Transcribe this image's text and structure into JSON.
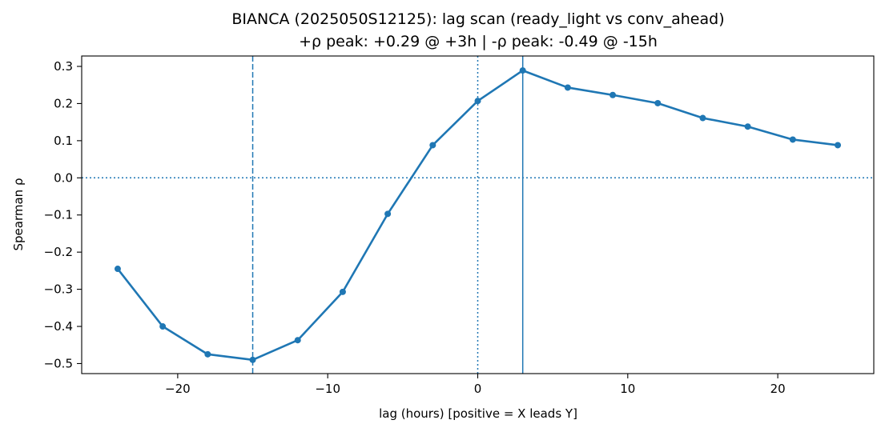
{
  "chart_data": {
    "type": "line",
    "title": "BIANCA (2025050S12125): lag scan (ready_light vs conv_ahead)",
    "subtitle": "+ρ peak: +0.29 @ +3h | -ρ peak: -0.49 @ -15h",
    "xlabel": "lag (hours) [positive = X leads Y]",
    "ylabel": "Spearman ρ",
    "xlim": [
      -26.4,
      26.4
    ],
    "ylim": [
      -0.527,
      0.328
    ],
    "x_ticks": [
      -20,
      -10,
      0,
      10,
      20
    ],
    "x_tick_labels": [
      "−20",
      "−10",
      "0",
      "10",
      "20"
    ],
    "y_ticks": [
      -0.5,
      -0.4,
      -0.3,
      -0.2,
      -0.1,
      0.0,
      0.1,
      0.2,
      0.3
    ],
    "y_tick_labels": [
      "−0.5",
      "−0.4",
      "−0.3",
      "−0.2",
      "−0.1",
      "0.0",
      "0.1",
      "0.2",
      "0.3"
    ],
    "grid": false,
    "color": "#1f77b4",
    "x": [
      -24,
      -21,
      -18,
      -15,
      -12,
      -9,
      -6,
      -3,
      0,
      3,
      6,
      9,
      12,
      15,
      18,
      21,
      24
    ],
    "y": [
      -0.245,
      -0.4,
      -0.475,
      -0.49,
      -0.437,
      -0.307,
      -0.097,
      0.088,
      0.207,
      0.289,
      0.243,
      0.223,
      0.201,
      0.161,
      0.138,
      0.103,
      0.088
    ],
    "reference_lines": [
      {
        "orientation": "vertical",
        "value": 3,
        "style": "solid"
      },
      {
        "orientation": "vertical",
        "value": -15,
        "style": "dashed"
      },
      {
        "orientation": "vertical",
        "value": 0,
        "style": "dotted"
      },
      {
        "orientation": "horizontal",
        "value": 0,
        "style": "dotted"
      }
    ]
  }
}
